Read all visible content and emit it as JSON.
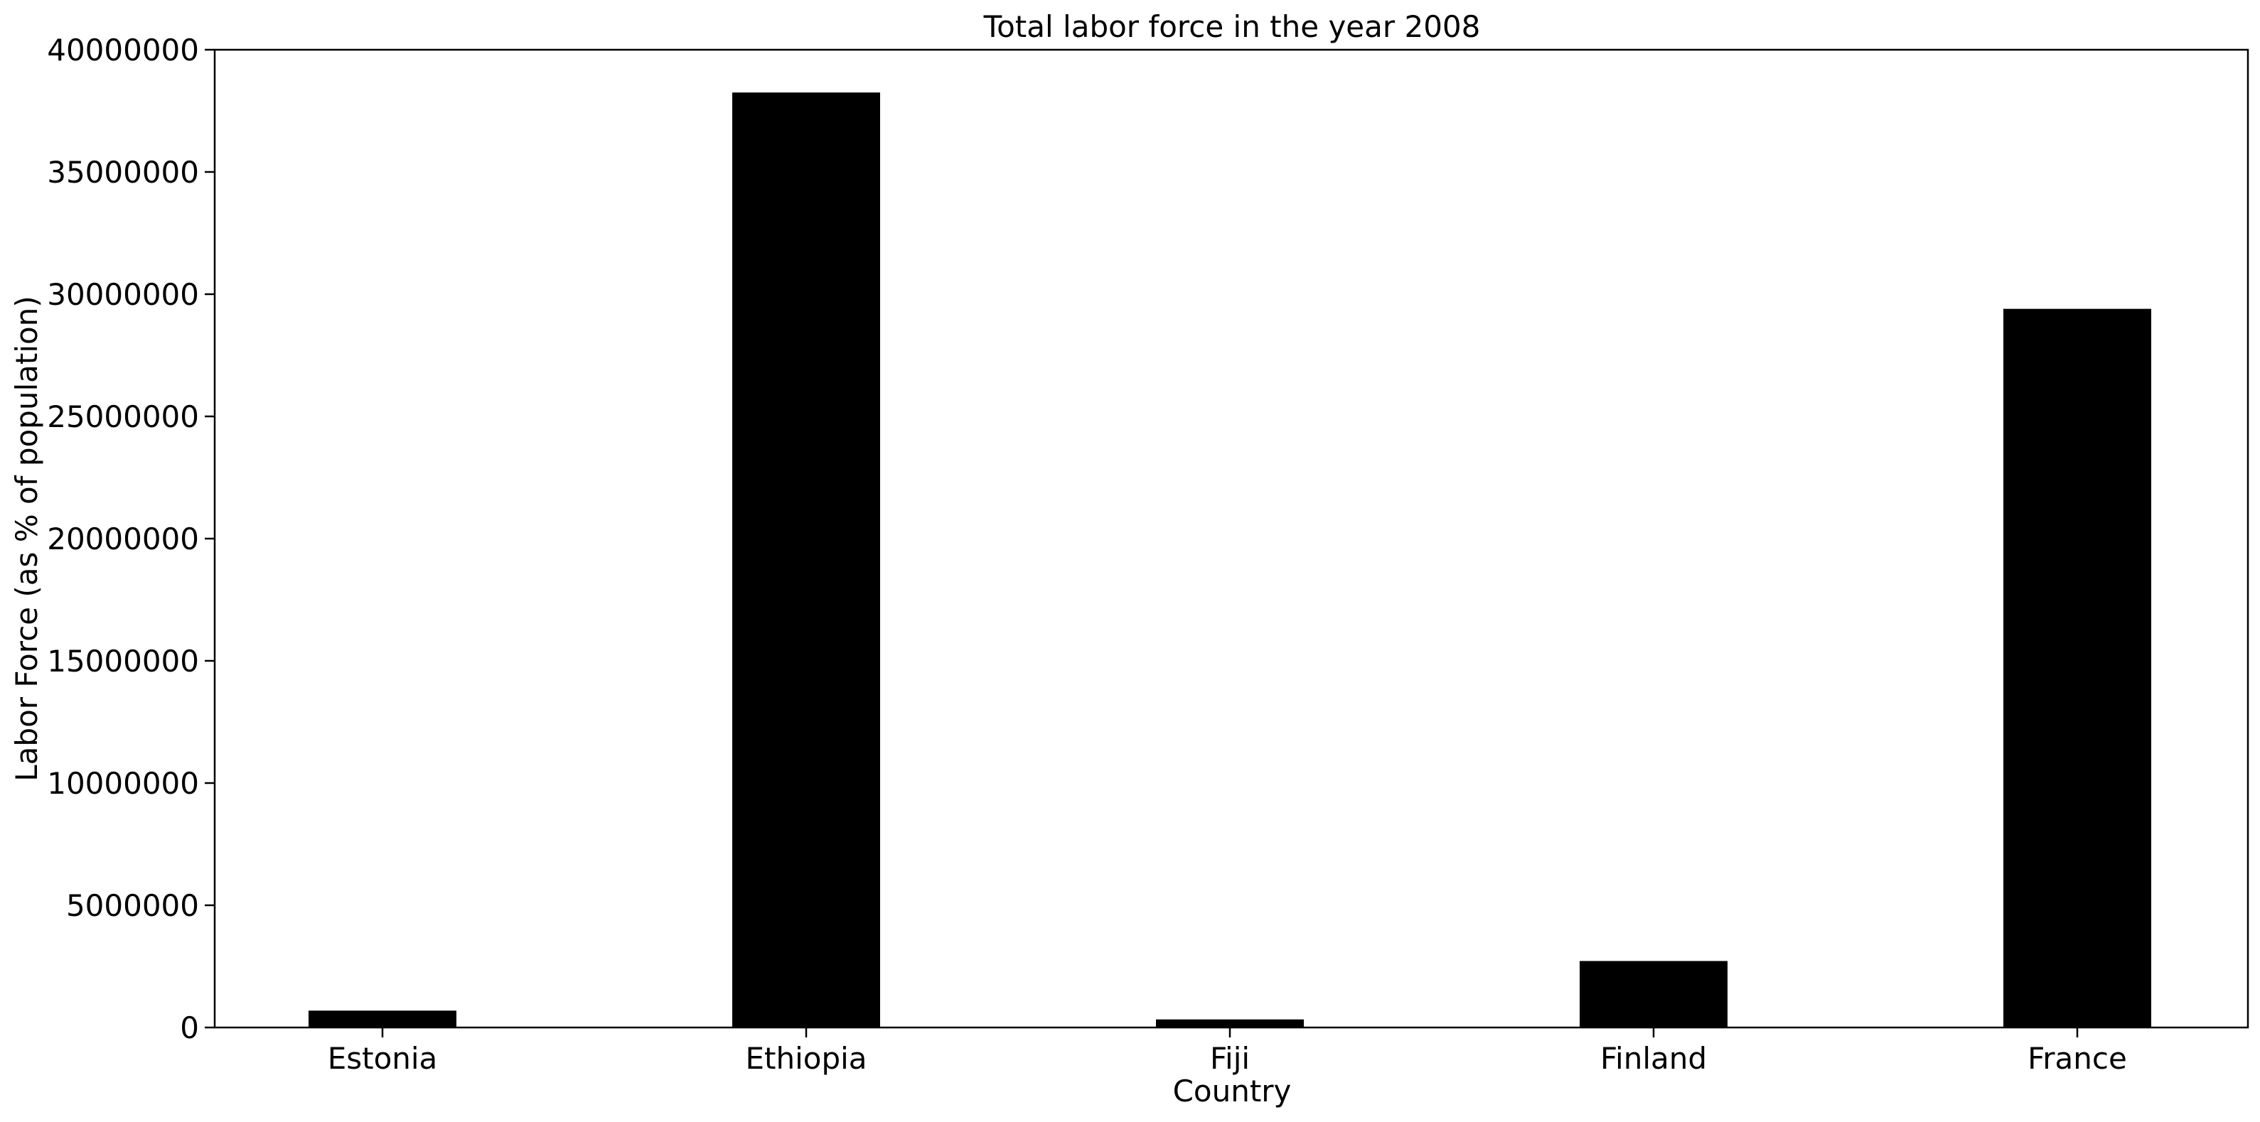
{
  "chart_data": {
    "type": "bar",
    "title": "Total labor force in the year 2008",
    "xlabel": "Country",
    "ylabel": "Labor Force (as % of population)",
    "categories": [
      "Estonia",
      "Ethiopia",
      "Fiji",
      "Finland",
      "France"
    ],
    "values": [
      690000,
      38250000,
      330000,
      2720000,
      29400000
    ],
    "ylim": [
      0,
      40000000
    ],
    "yticks": [
      0,
      5000000,
      10000000,
      15000000,
      20000000,
      25000000,
      30000000,
      35000000,
      40000000
    ],
    "ytick_labels": [
      "0",
      "5000000",
      "10000000",
      "15000000",
      "20000000",
      "25000000",
      "30000000",
      "35000000",
      "40000000"
    ],
    "grid": false,
    "bar_color": "#000000"
  }
}
